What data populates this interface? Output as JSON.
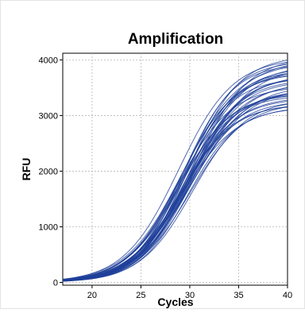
{
  "chart_data": {
    "type": "line",
    "title": "Amplification",
    "xlabel": "Cycles",
    "ylabel": "RFU",
    "xlim": [
      17,
      40
    ],
    "ylim": [
      -50,
      4120
    ],
    "xticks": [
      20,
      25,
      30,
      35,
      40
    ],
    "yticks": [
      0,
      1000,
      2000,
      3000,
      4000
    ],
    "grid": true,
    "line_color": "#1f3f9a",
    "curve_model": "sigmoid",
    "series_count": 40,
    "plateau_range": [
      3150,
      4080
    ],
    "midpoint_range": [
      28.7,
      30.4
    ],
    "steepness_range": [
      0.34,
      0.4
    ],
    "baseline": 0
  }
}
